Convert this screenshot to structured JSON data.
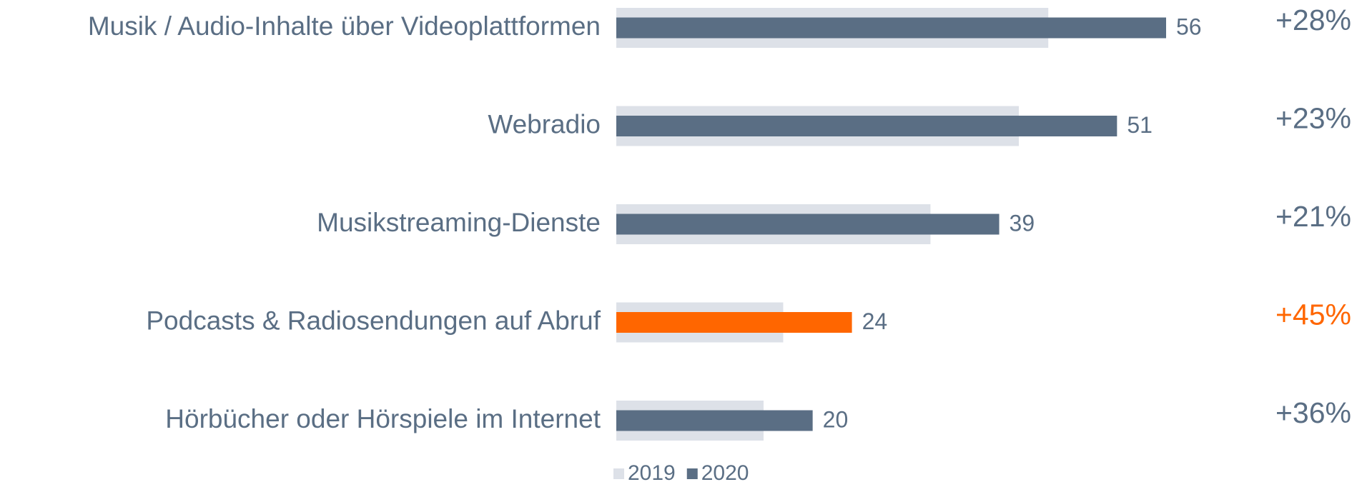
{
  "chart_data": {
    "type": "bar",
    "orientation": "horizontal",
    "categories": [
      "Musik / Audio-Inhalte über Videoplattformen",
      "Webradio",
      "Musikstreaming-Dienste",
      "Podcasts & Radiosendungen auf Abruf",
      "Hörbücher oder Hörspiele im Internet"
    ],
    "series": [
      {
        "name": "2019",
        "color": "#dde1e8",
        "values": [
          44,
          41,
          32,
          17,
          15
        ]
      },
      {
        "name": "2020",
        "color": "#5a6e84",
        "colors": [
          "#5a6e84",
          "#5a6e84",
          "#5a6e84",
          "#ff6600",
          "#5a6e84"
        ],
        "values": [
          56,
          51,
          39,
          24,
          20
        ]
      }
    ],
    "change_labels": [
      "+28%",
      "+23%",
      "+21%",
      "+45%",
      "+36%"
    ],
    "legend": "bottom"
  }
}
